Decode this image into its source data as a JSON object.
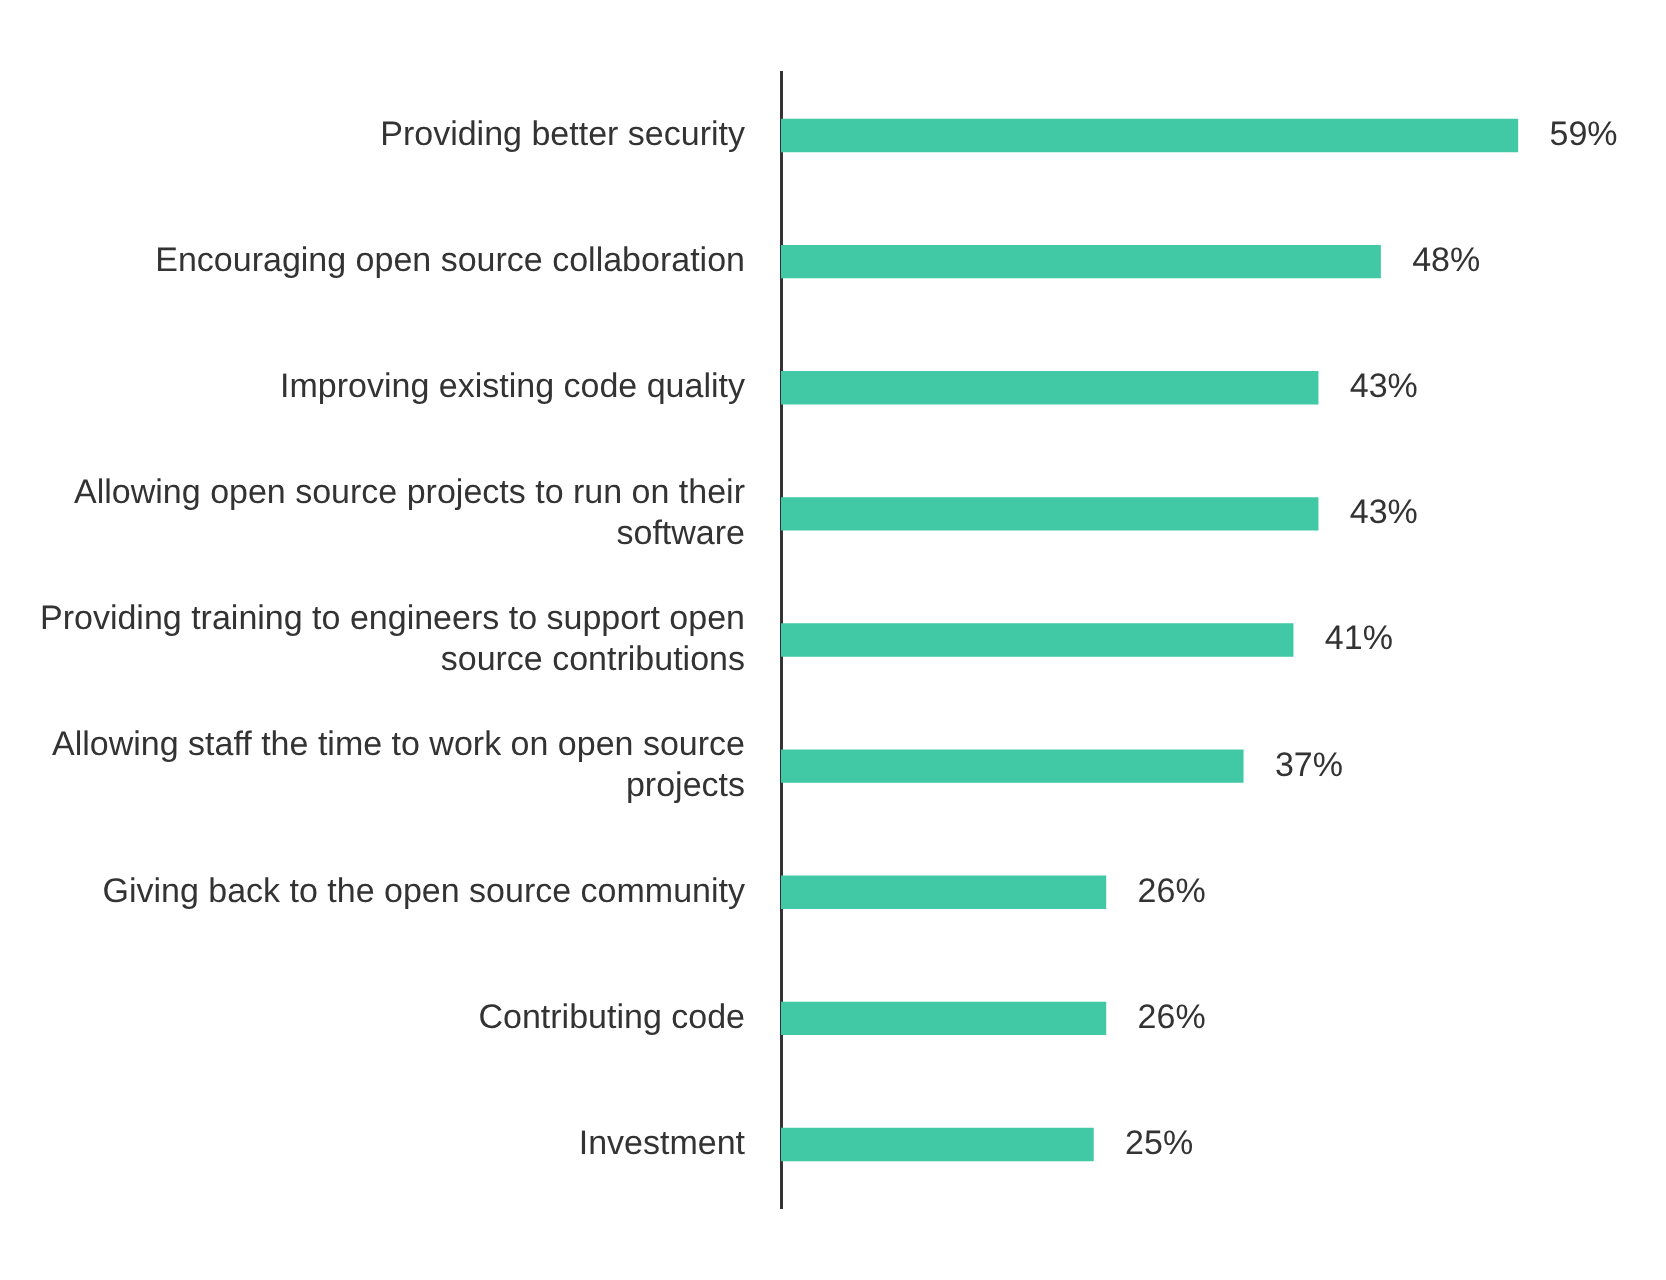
{
  "chart_data": {
    "type": "bar",
    "orientation": "horizontal",
    "categories": [
      "Providing better security",
      "Encouraging open source collaboration",
      "Improving existing code quality",
      "Allowing open source projects to run on their software",
      "Providing training to engineers to support open source contributions",
      "Allowing staff the time to work on open source projects",
      "Giving back to the open source community",
      "Contributing code",
      "Investment"
    ],
    "values": [
      59,
      48,
      43,
      43,
      41,
      37,
      26,
      26,
      25
    ],
    "value_labels": [
      "59%",
      "48%",
      "43%",
      "43%",
      "41%",
      "37%",
      "26%",
      "26%",
      "25%"
    ],
    "color": "#41c9a5",
    "legend": false,
    "tick_labels": "y"
  }
}
